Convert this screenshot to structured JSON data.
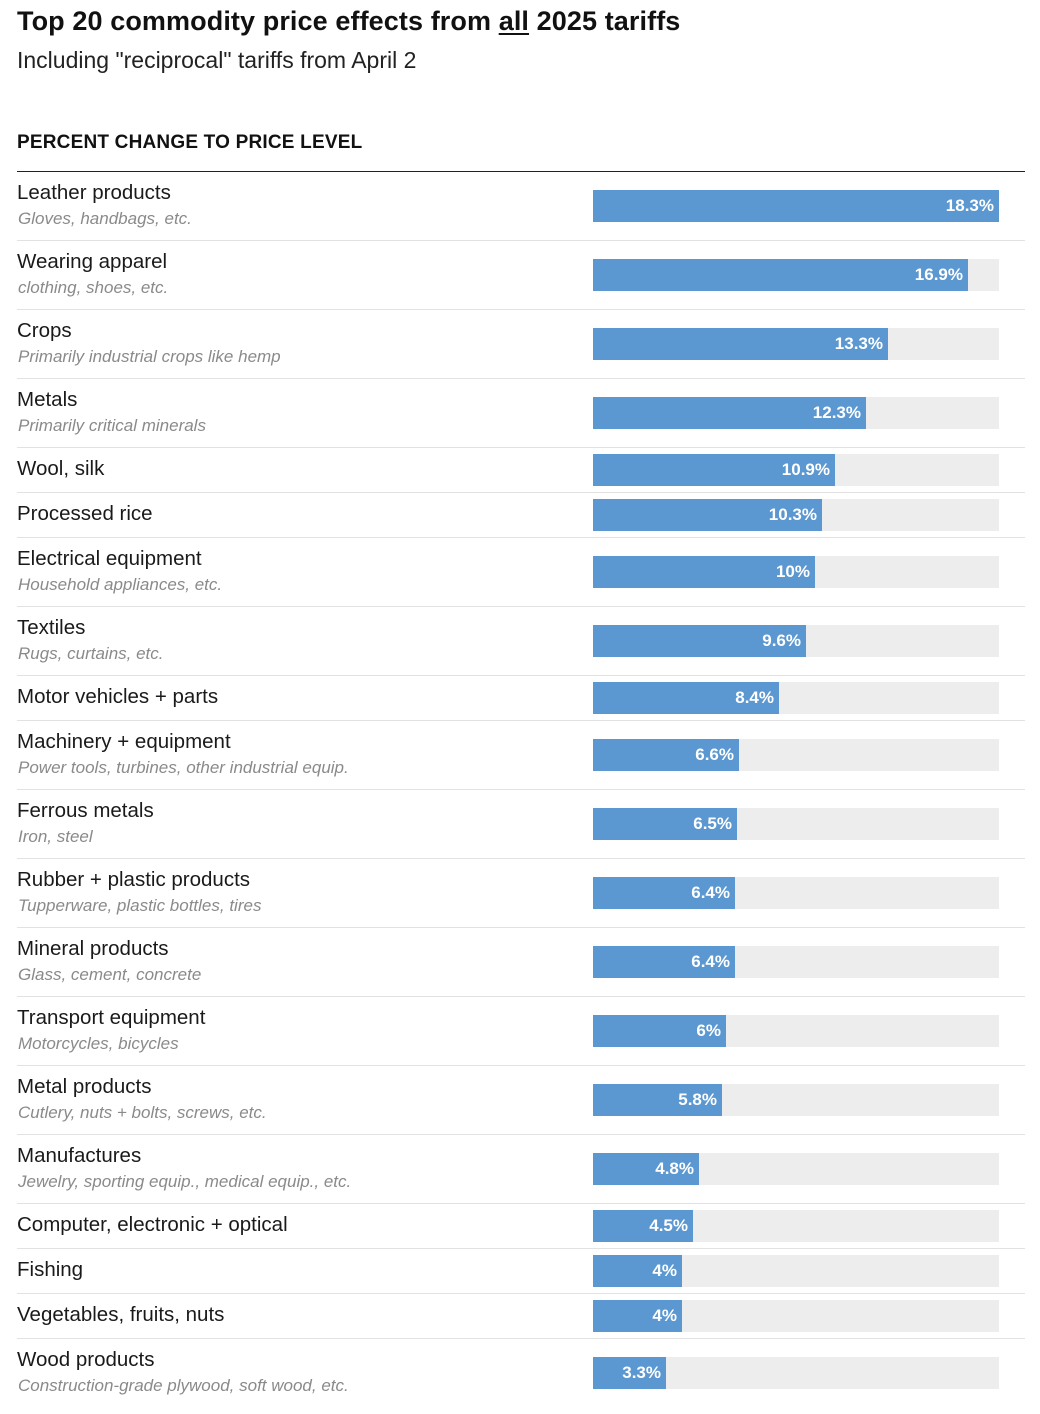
{
  "header": {
    "title_pre": "Top 20 commodity price effects from ",
    "title_emph": "all",
    "title_post": " 2025 tariffs",
    "subtitle": "Including \"reciprocal\" tariffs from April 2",
    "column_label": "PERCENT CHANGE TO PRICE LEVEL"
  },
  "colors": {
    "bar": "#5b97d0",
    "track": "#ededed",
    "value_text": "#ffffff"
  },
  "chart_data": {
    "type": "bar",
    "orientation": "horizontal",
    "title": "Top 20 commodity price effects from all 2025 tariffs",
    "subtitle": "Including \"reciprocal\" tariffs from April 2",
    "xlabel": "PERCENT CHANGE TO PRICE LEVEL",
    "xlim": [
      0,
      18.3
    ],
    "unit": "%",
    "rows": [
      {
        "label": "Leather products",
        "desc": "Gloves, handbags, etc.",
        "value": 18.3,
        "display": "18.3%"
      },
      {
        "label": "Wearing apparel",
        "desc": "clothing, shoes, etc.",
        "value": 16.9,
        "display": "16.9%"
      },
      {
        "label": "Crops",
        "desc": "Primarily industrial crops like hemp",
        "value": 13.3,
        "display": "13.3%"
      },
      {
        "label": "Metals",
        "desc": "Primarily critical minerals",
        "value": 12.3,
        "display": "12.3%"
      },
      {
        "label": "Wool, silk",
        "desc": "",
        "value": 10.9,
        "display": "10.9%"
      },
      {
        "label": "Processed rice",
        "desc": "",
        "value": 10.3,
        "display": "10.3%"
      },
      {
        "label": "Electrical equipment",
        "desc": "Household appliances, etc.",
        "value": 10,
        "display": "10%"
      },
      {
        "label": "Textiles",
        "desc": "Rugs, curtains, etc.",
        "value": 9.6,
        "display": "9.6%"
      },
      {
        "label": "Motor vehicles + parts",
        "desc": "",
        "value": 8.4,
        "display": "8.4%"
      },
      {
        "label": "Machinery + equipment",
        "desc": "Power tools, turbines, other industrial equip.",
        "value": 6.6,
        "display": "6.6%"
      },
      {
        "label": "Ferrous metals",
        "desc": "Iron, steel",
        "value": 6.5,
        "display": "6.5%"
      },
      {
        "label": "Rubber + plastic products",
        "desc": "Tupperware, plastic bottles, tires",
        "value": 6.4,
        "display": "6.4%"
      },
      {
        "label": "Mineral products",
        "desc": "Glass, cement, concrete",
        "value": 6.4,
        "display": "6.4%"
      },
      {
        "label": "Transport equipment",
        "desc": "Motorcycles, bicycles",
        "value": 6,
        "display": "6%"
      },
      {
        "label": "Metal products",
        "desc": "Cutlery, nuts + bolts, screws, etc.",
        "value": 5.8,
        "display": "5.8%"
      },
      {
        "label": "Manufactures",
        "desc": "Jewelry, sporting equip., medical equip., etc.",
        "value": 4.8,
        "display": "4.8%"
      },
      {
        "label": "Computer, electronic + optical",
        "desc": "",
        "value": 4.5,
        "display": "4.5%"
      },
      {
        "label": "Fishing",
        "desc": "",
        "value": 4,
        "display": "4%"
      },
      {
        "label": "Vegetables, fruits, nuts",
        "desc": "",
        "value": 4,
        "display": "4%"
      },
      {
        "label": "Wood products",
        "desc": "Construction-grade plywood, soft wood, etc.",
        "value": 3.3,
        "display": "3.3%"
      }
    ]
  }
}
